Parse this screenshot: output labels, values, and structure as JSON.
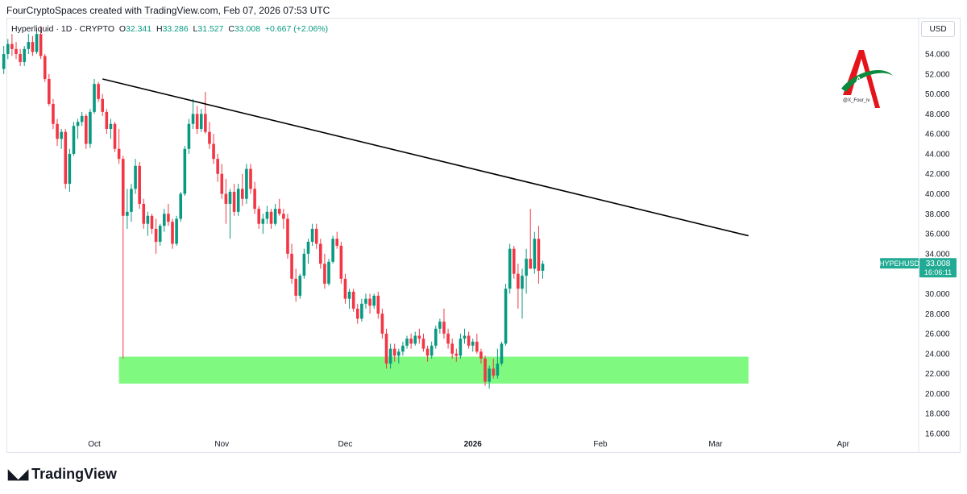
{
  "header": {
    "text": "FourCryptoSpaces created with TradingView.com, Feb 07, 2026 07:53 UTC"
  },
  "legend": {
    "symbol": "Hyperliquid · 1D · CRYPTO",
    "open_label": "O",
    "open": "32.341",
    "high_label": "H",
    "high": "33.286",
    "low_label": "L",
    "low": "31.527",
    "close_label": "C",
    "close": "33.008",
    "change": "+0.667 (+2.06%)"
  },
  "currency_button": "USD",
  "price_tag": {
    "symbol": "HYPEHUSD",
    "price": "33.008",
    "countdown": "16:06:11"
  },
  "watermark": {
    "handle": "@X_Four_iv",
    "logo_letter": "A"
  },
  "footer": {
    "brand": "TradingView",
    "icon": "tv-logo-icon"
  },
  "colors": {
    "up": "#089981",
    "down": "#f23645",
    "zone": "#80f980",
    "trendline": "#000000",
    "tag": "#22ab94"
  },
  "chart_data": {
    "type": "candlestick",
    "title": "Hyperliquid · 1D · CRYPTO",
    "ylim": [
      16,
      56
    ],
    "y_ticks": [
      "54.000",
      "52.000",
      "50.000",
      "48.000",
      "46.000",
      "44.000",
      "42.000",
      "40.000",
      "38.000",
      "36.000",
      "34.000",
      "32.000",
      "30.000",
      "28.000",
      "26.000",
      "24.000",
      "22.000",
      "20.000",
      "18.000",
      "16.000"
    ],
    "y_tick_values": [
      54,
      52,
      50,
      48,
      46,
      44,
      42,
      40,
      38,
      36,
      34,
      32,
      30,
      28,
      26,
      24,
      22,
      20,
      18,
      16
    ],
    "x_labels": [
      {
        "label": "Oct",
        "day": 0
      },
      {
        "label": "Nov",
        "day": 31
      },
      {
        "label": "Dec",
        "day": 61
      },
      {
        "label": "2026",
        "day": 92
      },
      {
        "label": "Feb",
        "day": 123
      },
      {
        "label": "Mar",
        "day": 151
      },
      {
        "label": "Apr",
        "day": 182
      }
    ],
    "first_candle_day": -22,
    "candles": [
      [
        52.5,
        54.8,
        52.0,
        54.0
      ],
      [
        54.0,
        55.5,
        53.5,
        55.0
      ],
      [
        55.0,
        56.0,
        53.8,
        54.5
      ],
      [
        54.5,
        55.2,
        53.5,
        54.0
      ],
      [
        54.0,
        54.5,
        52.8,
        53.2
      ],
      [
        53.2,
        54.8,
        52.8,
        54.5
      ],
      [
        54.5,
        56.0,
        54.0,
        55.2
      ],
      [
        55.2,
        55.8,
        53.8,
        54.2
      ],
      [
        54.2,
        56.5,
        54.0,
        56.0
      ],
      [
        56.0,
        56.8,
        53.5,
        53.8
      ],
      [
        53.8,
        54.0,
        51.2,
        51.5
      ],
      [
        51.5,
        52.0,
        48.8,
        49.0
      ],
      [
        49.0,
        49.5,
        46.5,
        47.0
      ],
      [
        47.0,
        47.5,
        44.8,
        45.5
      ],
      [
        45.5,
        46.5,
        44.5,
        46.2
      ],
      [
        46.2,
        46.5,
        40.5,
        41.0
      ],
      [
        41.0,
        44.5,
        40.2,
        44.0
      ],
      [
        44.0,
        47.2,
        43.8,
        46.8
      ],
      [
        46.8,
        47.5,
        45.5,
        47.2
      ],
      [
        47.2,
        48.2,
        46.8,
        47.8
      ],
      [
        47.8,
        48.0,
        44.5,
        45.0
      ],
      [
        45.0,
        48.5,
        44.6,
        48.2
      ],
      [
        48.2,
        51.5,
        48.0,
        51.0
      ],
      [
        51.0,
        51.2,
        49.2,
        49.5
      ],
      [
        49.5,
        50.0,
        47.8,
        48.2
      ],
      [
        48.2,
        48.5,
        46.0,
        46.5
      ],
      [
        46.5,
        47.5,
        45.5,
        47.0
      ],
      [
        47.0,
        47.2,
        44.2,
        44.5
      ],
      [
        44.5,
        46.5,
        43.0,
        43.5
      ],
      [
        43.5,
        43.8,
        23.5,
        37.8
      ],
      [
        37.8,
        40.5,
        36.5,
        38.2
      ],
      [
        38.2,
        41.0,
        37.2,
        40.5
      ],
      [
        40.5,
        43.5,
        40.0,
        42.8
      ],
      [
        42.8,
        43.2,
        38.5,
        39.0
      ],
      [
        39.0,
        39.5,
        36.5,
        37.0
      ],
      [
        37.0,
        38.2,
        35.8,
        37.8
      ],
      [
        37.8,
        38.0,
        36.0,
        36.5
      ],
      [
        36.5,
        37.5,
        34.0,
        35.2
      ],
      [
        35.2,
        37.0,
        34.8,
        36.8
      ],
      [
        36.8,
        38.5,
        36.2,
        38.0
      ],
      [
        38.0,
        39.0,
        36.8,
        37.2
      ],
      [
        37.2,
        37.5,
        34.5,
        35.0
      ],
      [
        35.0,
        37.8,
        34.8,
        37.5
      ],
      [
        37.5,
        40.2,
        37.2,
        40.0
      ],
      [
        40.0,
        44.8,
        39.8,
        44.5
      ],
      [
        44.5,
        47.5,
        44.0,
        47.0
      ],
      [
        47.0,
        49.5,
        46.5,
        48.0
      ],
      [
        48.0,
        48.8,
        46.0,
        46.5
      ],
      [
        46.5,
        48.5,
        46.2,
        48.0
      ],
      [
        48.0,
        50.2,
        46.0,
        46.2
      ],
      [
        46.2,
        47.2,
        44.5,
        45.0
      ],
      [
        45.0,
        46.0,
        43.0,
        43.5
      ],
      [
        43.5,
        44.0,
        41.2,
        42.0
      ],
      [
        42.0,
        43.0,
        39.5,
        40.0
      ],
      [
        40.0,
        41.5,
        37.0,
        39.0
      ],
      [
        39.0,
        40.5,
        35.5,
        40.2
      ],
      [
        40.2,
        41.0,
        37.8,
        38.2
      ],
      [
        38.2,
        41.0,
        37.8,
        40.5
      ],
      [
        40.5,
        42.0,
        38.8,
        39.5
      ],
      [
        39.5,
        43.0,
        39.0,
        42.5
      ],
      [
        42.5,
        43.0,
        40.0,
        40.5
      ],
      [
        40.5,
        41.2,
        38.0,
        38.5
      ],
      [
        38.5,
        38.8,
        36.5,
        37.0
      ],
      [
        37.0,
        38.0,
        36.0,
        37.5
      ],
      [
        37.5,
        38.8,
        37.0,
        38.2
      ],
      [
        38.2,
        38.5,
        36.5,
        37.0
      ],
      [
        37.0,
        39.0,
        36.8,
        38.5
      ],
      [
        38.5,
        39.5,
        37.8,
        38.0
      ],
      [
        38.0,
        38.5,
        36.5,
        37.5
      ],
      [
        37.5,
        38.0,
        33.5,
        34.0
      ],
      [
        34.0,
        35.0,
        31.0,
        31.5
      ],
      [
        31.5,
        32.5,
        29.2,
        29.8
      ],
      [
        29.8,
        32.0,
        29.5,
        31.8
      ],
      [
        31.8,
        34.5,
        31.5,
        34.0
      ],
      [
        34.0,
        35.5,
        33.0,
        35.2
      ],
      [
        35.2,
        37.0,
        34.8,
        36.5
      ],
      [
        36.5,
        37.0,
        34.5,
        35.0
      ],
      [
        35.0,
        35.5,
        32.5,
        33.0
      ],
      [
        33.0,
        34.0,
        30.5,
        31.0
      ],
      [
        31.0,
        33.5,
        30.8,
        33.2
      ],
      [
        33.2,
        35.8,
        33.0,
        35.5
      ],
      [
        35.5,
        36.2,
        34.5,
        34.8
      ],
      [
        34.8,
        35.2,
        31.0,
        31.5
      ],
      [
        31.5,
        32.0,
        29.0,
        29.5
      ],
      [
        29.5,
        30.5,
        28.5,
        30.2
      ],
      [
        30.2,
        30.5,
        28.2,
        28.5
      ],
      [
        28.5,
        29.0,
        27.0,
        27.5
      ],
      [
        27.5,
        29.5,
        27.2,
        29.0
      ],
      [
        29.0,
        30.0,
        28.5,
        29.5
      ],
      [
        29.5,
        30.0,
        28.0,
        28.8
      ],
      [
        28.8,
        30.0,
        28.5,
        29.8
      ],
      [
        29.8,
        30.2,
        27.5,
        28.0
      ],
      [
        28.0,
        28.5,
        25.5,
        26.0
      ],
      [
        26.0,
        26.5,
        22.5,
        23.0
      ],
      [
        23.0,
        25.0,
        22.5,
        24.5
      ],
      [
        24.5,
        25.0,
        23.2,
        23.8
      ],
      [
        23.8,
        24.5,
        23.0,
        24.2
      ],
      [
        24.2,
        25.2,
        23.8,
        24.8
      ],
      [
        24.8,
        25.8,
        24.5,
        25.5
      ],
      [
        25.5,
        26.0,
        24.5,
        25.0
      ],
      [
        25.0,
        26.2,
        24.8,
        25.8
      ],
      [
        25.8,
        26.5,
        25.0,
        25.5
      ],
      [
        25.5,
        26.0,
        24.2,
        24.5
      ],
      [
        24.5,
        24.8,
        23.2,
        23.8
      ],
      [
        23.8,
        25.2,
        23.5,
        24.8
      ],
      [
        24.8,
        26.8,
        24.5,
        26.5
      ],
      [
        26.5,
        27.5,
        26.0,
        27.2
      ],
      [
        27.2,
        28.5,
        25.5,
        26.0
      ],
      [
        26.0,
        26.5,
        24.5,
        25.0
      ],
      [
        25.0,
        25.5,
        23.5,
        24.0
      ],
      [
        24.0,
        24.5,
        23.2,
        23.8
      ],
      [
        23.8,
        26.0,
        23.5,
        25.5
      ],
      [
        25.5,
        26.5,
        25.0,
        25.8
      ],
      [
        25.8,
        26.2,
        24.5,
        24.8
      ],
      [
        24.8,
        25.5,
        24.2,
        25.2
      ],
      [
        25.2,
        26.0,
        24.0,
        24.2
      ],
      [
        24.2,
        24.5,
        23.0,
        23.5
      ],
      [
        23.5,
        23.8,
        20.8,
        21.2
      ],
      [
        21.2,
        22.8,
        20.5,
        22.5
      ],
      [
        22.5,
        23.5,
        21.5,
        21.8
      ],
      [
        21.8,
        24.5,
        21.5,
        23.0
      ],
      [
        23.0,
        25.2,
        22.8,
        25.0
      ],
      [
        25.0,
        31.0,
        24.8,
        30.5
      ],
      [
        30.5,
        35.0,
        30.0,
        34.5
      ],
      [
        34.5,
        34.8,
        31.5,
        32.0
      ],
      [
        32.0,
        33.0,
        28.5,
        30.5
      ],
      [
        30.5,
        32.5,
        27.5,
        31.8
      ],
      [
        31.8,
        34.5,
        30.0,
        33.5
      ],
      [
        33.5,
        38.5,
        32.8,
        32.5
      ],
      [
        32.5,
        36.2,
        32.0,
        35.5
      ],
      [
        35.5,
        36.8,
        31.0,
        32.3
      ],
      [
        32.3,
        33.3,
        31.5,
        33.0
      ]
    ],
    "trendline": {
      "from": {
        "day": 2,
        "price": 51.5
      },
      "to": {
        "day": 159,
        "price": 35.8
      }
    },
    "support_zone": {
      "from_day": 6,
      "to_day": 159,
      "low": 21.0,
      "high": 23.7
    }
  }
}
